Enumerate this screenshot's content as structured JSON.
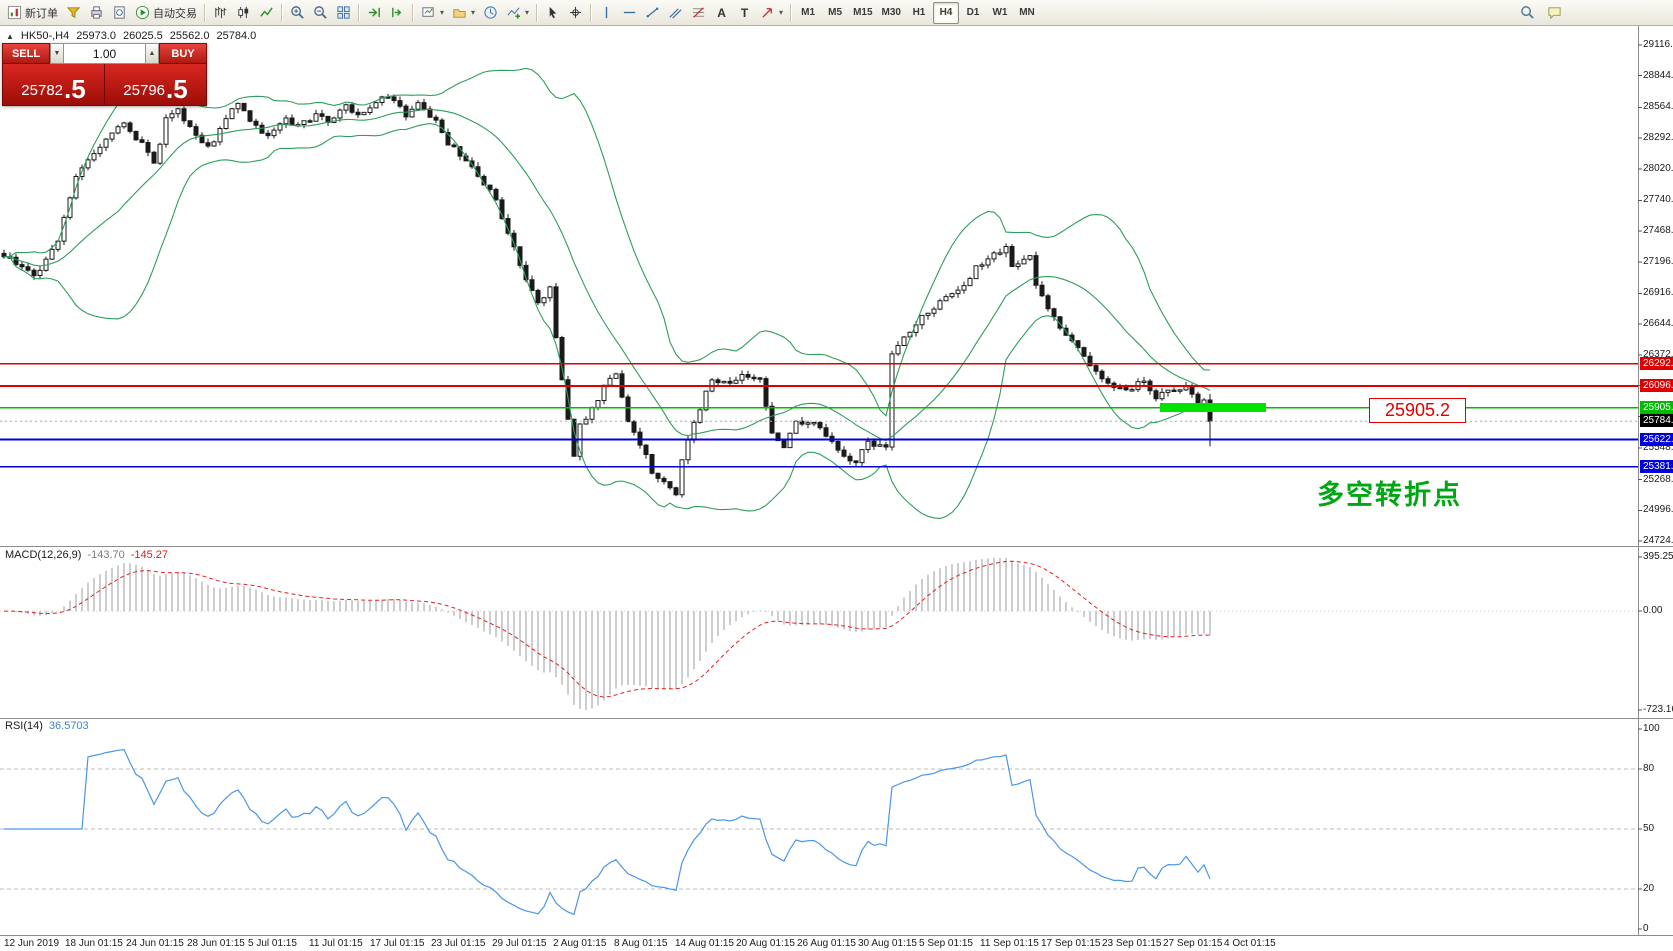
{
  "toolbar": {
    "new_order_label": "新订单",
    "auto_trading_label": "自动交易",
    "timeframes": [
      "M1",
      "M5",
      "M15",
      "M30",
      "H1",
      "H4",
      "D1",
      "W1",
      "MN"
    ],
    "active_timeframe": "H4"
  },
  "symbol_info": {
    "marker": "▲",
    "symbol": "HK50-,H4",
    "open": "25973.0",
    "high": "26025.5",
    "low": "25562.0",
    "close": "25784.0"
  },
  "trade_panel": {
    "sell_label": "SELL",
    "buy_label": "BUY",
    "volume": "1.00",
    "sell_price_int": "25782",
    "sell_price_dec": ".5",
    "buy_price_int": "25796",
    "buy_price_dec": ".5"
  },
  "annotations": {
    "price_callout": "25905.2",
    "turning_point_label": "多空转折点"
  },
  "macd_panel": {
    "name": "MACD(12,26,9)",
    "value_main": "-143.70",
    "value_signal": "-145.27",
    "scale": [
      {
        "label": "395.25",
        "value": 395.25
      },
      {
        "label": "0.00",
        "value": 0
      },
      {
        "label": "-723.16",
        "value": -723.16
      }
    ]
  },
  "rsi_panel": {
    "name": "RSI(14)",
    "value": "36.5703",
    "levels": [
      80,
      50,
      20
    ],
    "scale": [
      {
        "label": "100",
        "value": 100
      },
      {
        "label": "80",
        "value": 80
      },
      {
        "label": "50",
        "value": 50
      },
      {
        "label": "20",
        "value": 20
      },
      {
        "label": "0",
        "value": 0
      }
    ]
  },
  "price_axis": {
    "ticks": [
      "29116.0",
      "28844.0",
      "28564.0",
      "28292.0",
      "28020.0",
      "27740.0",
      "27468.0",
      "27196.0",
      "26916.0",
      "26644.0",
      "26372.0",
      "26100.0",
      "25828.0",
      "25548.0",
      "25268.0",
      "24996.0",
      "24724.0"
    ]
  },
  "levels": [
    {
      "label": "26292.3",
      "price": 26292.3,
      "color": "#dd0000"
    },
    {
      "label": "26096.3",
      "price": 26096.3,
      "color": "#dd0000"
    },
    {
      "label": "25905.2",
      "price": 25905.2,
      "color": "#00bb00",
      "highlight": true,
      "highlight_x": [
        1160,
        1266
      ]
    },
    {
      "label": "25622.6",
      "price": 25622.6,
      "color": "#0000dd"
    },
    {
      "label": "25381.6",
      "price": 25381.6,
      "color": "#0000dd"
    }
  ],
  "current_price": {
    "label": "25784.0",
    "value": 25784.0
  },
  "date_axis": [
    "12 Jun 2019",
    "18 Jun 01:15",
    "24 Jun 01:15",
    "28 Jun 01:15",
    "5 Jul 01:15",
    "11 Jul 01:15",
    "17 Jul 01:15",
    "23 Jul 01:15",
    "29 Jul 01:15",
    "2 Aug 01:15",
    "8 Aug 01:15",
    "14 Aug 01:15",
    "20 Aug 01:15",
    "26 Aug 01:15",
    "30 Aug 01:15",
    "5 Sep 01:15",
    "11 Sep 01:15",
    "17 Sep 01:15",
    "23 Sep 01:15",
    "27 Sep 01:15",
    "4 Oct 01:15"
  ],
  "chart_data": {
    "type": "candlestick",
    "symbol": "HK50",
    "timeframe": "H4",
    "title": "HK50-,H4",
    "price_range": [
      24680,
      29284
    ],
    "candle_count": 202,
    "last_candle": {
      "open": 25973.0,
      "high": 26025.5,
      "low": 25562.0,
      "close": 25784.0
    },
    "close_anchors": [
      [
        0,
        27250
      ],
      [
        5,
        27060
      ],
      [
        9,
        27400
      ],
      [
        12,
        27950
      ],
      [
        15,
        28150
      ],
      [
        17,
        28300
      ],
      [
        20,
        28400
      ],
      [
        23,
        28250
      ],
      [
        25,
        28060
      ],
      [
        27,
        28450
      ],
      [
        29,
        28550
      ],
      [
        32,
        28300
      ],
      [
        34,
        28200
      ],
      [
        37,
        28450
      ],
      [
        39,
        28600
      ],
      [
        42,
        28400
      ],
      [
        44,
        28300
      ],
      [
        47,
        28450
      ],
      [
        49,
        28400
      ],
      [
        52,
        28500
      ],
      [
        54,
        28450
      ],
      [
        57,
        28570
      ],
      [
        59,
        28500
      ],
      [
        62,
        28600
      ],
      [
        64,
        28680
      ],
      [
        67,
        28500
      ],
      [
        69,
        28580
      ],
      [
        72,
        28450
      ],
      [
        74,
        28250
      ],
      [
        77,
        28100
      ],
      [
        79,
        27950
      ],
      [
        82,
        27750
      ],
      [
        84,
        27450
      ],
      [
        87,
        27050
      ],
      [
        89,
        26850
      ],
      [
        91,
        26950
      ],
      [
        92,
        26500
      ],
      [
        93,
        26150
      ],
      [
        95,
        25500
      ],
      [
        96,
        25750
      ],
      [
        98,
        25880
      ],
      [
        100,
        26100
      ],
      [
        102,
        26180
      ],
      [
        104,
        25800
      ],
      [
        107,
        25500
      ],
      [
        108,
        25350
      ],
      [
        110,
        25250
      ],
      [
        112,
        25120
      ],
      [
        113,
        25450
      ],
      [
        116,
        25900
      ],
      [
        118,
        26150
      ],
      [
        121,
        26100
      ],
      [
        123,
        26200
      ],
      [
        126,
        26150
      ],
      [
        128,
        25700
      ],
      [
        130,
        25560
      ],
      [
        132,
        25800
      ],
      [
        135,
        25760
      ],
      [
        137,
        25650
      ],
      [
        140,
        25460
      ],
      [
        142,
        25420
      ],
      [
        144,
        25600
      ],
      [
        147,
        25560
      ],
      [
        148,
        26380
      ],
      [
        150,
        26520
      ],
      [
        152,
        26650
      ],
      [
        155,
        26800
      ],
      [
        157,
        26900
      ],
      [
        160,
        27000
      ],
      [
        162,
        27150
      ],
      [
        165,
        27250
      ],
      [
        167,
        27320
      ],
      [
        168,
        27180
      ],
      [
        171,
        27250
      ],
      [
        172,
        27000
      ],
      [
        175,
        26700
      ],
      [
        177,
        26550
      ],
      [
        180,
        26350
      ],
      [
        182,
        26200
      ],
      [
        185,
        26100
      ],
      [
        187,
        26050
      ],
      [
        190,
        26150
      ],
      [
        192,
        26000
      ],
      [
        195,
        26050
      ],
      [
        197,
        26100
      ],
      [
        199,
        25950
      ],
      [
        200,
        25973
      ],
      [
        201,
        25784
      ]
    ],
    "indicators": [
      {
        "name": "Bollinger Bands",
        "period": 20,
        "deviation": 2,
        "color": "#2e9e5b"
      },
      {
        "name": "MACD",
        "fast": 12,
        "slow": 26,
        "signal": 9,
        "histogram_color": "#9b9b9b",
        "signal_color": "#e02222",
        "range": [
          -782,
          476
        ]
      },
      {
        "name": "RSI",
        "period": 14,
        "color": "#4a96e8",
        "range": [
          0,
          100
        ]
      }
    ],
    "colors": {
      "bull": "#ffffff",
      "bear": "#1a1a1a",
      "outline": "#1a1a1a",
      "background": "#ffffff"
    }
  }
}
